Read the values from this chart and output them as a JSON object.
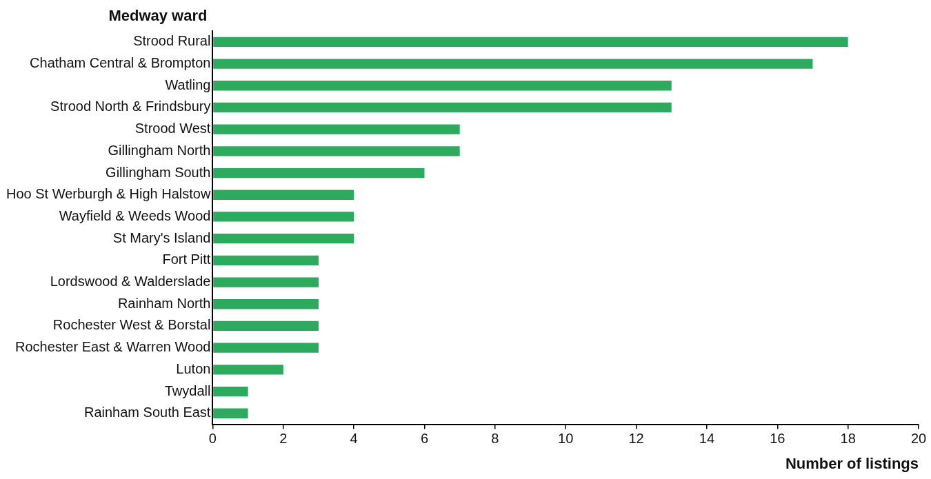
{
  "chart_data": {
    "type": "bar",
    "orientation": "horizontal",
    "ylabel": "Medway ward",
    "xlabel": "Number of listings",
    "categories": [
      "Strood Rural",
      "Chatham Central & Brompton",
      "Watling",
      "Strood North & Frindsbury",
      "Strood West",
      "Gillingham North",
      "Gillingham South",
      "Hoo St Werburgh & High Halstow",
      "Wayfield & Weeds Wood",
      "St Mary's Island",
      "Fort Pitt",
      "Lordswood & Walderslade",
      "Rainham North",
      "Rochester West & Borstal",
      "Rochester East & Warren Wood",
      "Luton",
      "Twydall",
      "Rainham South East"
    ],
    "values": [
      18,
      17,
      13,
      13,
      7,
      7,
      6,
      4,
      4,
      4,
      3,
      3,
      3,
      3,
      3,
      2,
      1,
      1
    ],
    "color": "#2eaa5f",
    "xlim": [
      0,
      20
    ],
    "xticks": [
      0,
      2,
      4,
      6,
      8,
      10,
      12,
      14,
      16,
      18,
      20
    ],
    "grid": false,
    "legend": false
  }
}
